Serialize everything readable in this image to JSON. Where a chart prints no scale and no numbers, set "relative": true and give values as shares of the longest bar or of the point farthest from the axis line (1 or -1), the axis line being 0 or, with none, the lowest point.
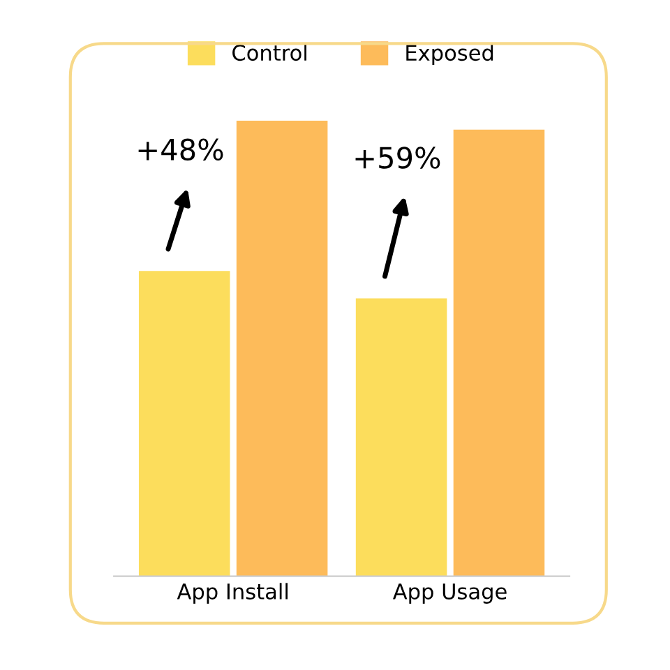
{
  "chart_data": {
    "type": "bar",
    "relative": true,
    "categories": [
      "App Install",
      "App Usage"
    ],
    "series": [
      {
        "name": "Control",
        "color": "#fcdd5c",
        "values": [
          0.67,
          0.61
        ]
      },
      {
        "name": "Exposed",
        "color": "#fdbb5a",
        "values": [
          1.0,
          0.98
        ]
      }
    ],
    "annotations": [
      "+48%",
      "+59%"
    ],
    "legend": "top",
    "grid": false
  }
}
